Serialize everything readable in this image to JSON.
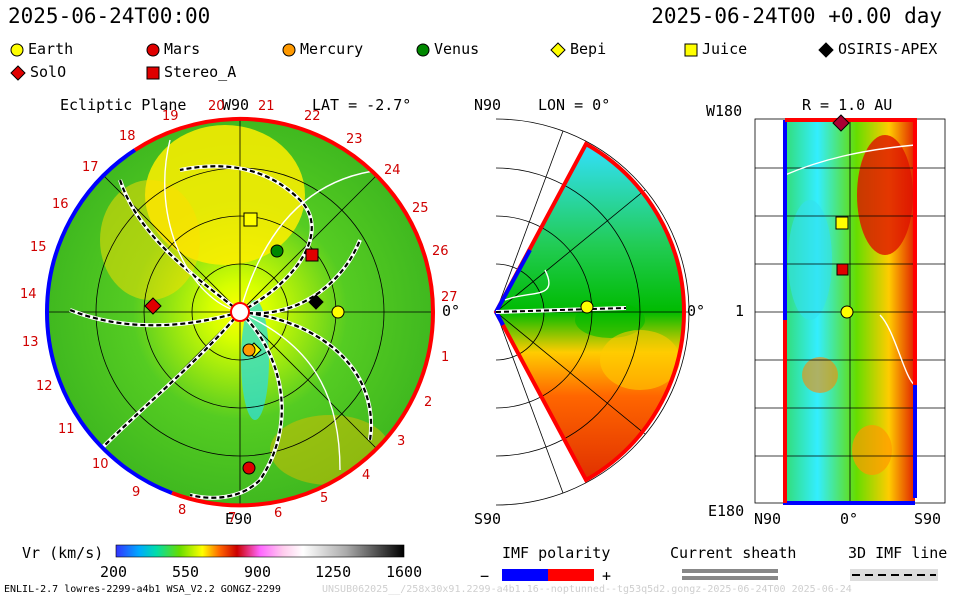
{
  "header": {
    "left_time": "2025-06-24T00:00",
    "right_time": "2025-06-24T00 +0.00 day"
  },
  "legend": [
    {
      "name": "Earth",
      "shape": "circle",
      "color": "#ffff00"
    },
    {
      "name": "Mars",
      "shape": "circle",
      "color": "#e00000"
    },
    {
      "name": "Mercury",
      "shape": "circle",
      "color": "#ff9900"
    },
    {
      "name": "Venus",
      "shape": "circle",
      "color": "#008800"
    },
    {
      "name": "Bepi",
      "shape": "diamond",
      "color": "#ffff00"
    },
    {
      "name": "Juice",
      "shape": "square",
      "color": "#ffff00"
    },
    {
      "name": "OSIRIS-APEX",
      "shape": "diamond",
      "color": "#000000"
    },
    {
      "name": "SolO",
      "shape": "diamond",
      "color": "#e00000"
    },
    {
      "name": "Stereo_A",
      "shape": "square",
      "color": "#e00000"
    }
  ],
  "ecliptic": {
    "title": "Ecliptic Plane",
    "lat": "LAT = -2.7°",
    "top": "W90",
    "bottom": "E90",
    "right": "0°",
    "ticks": [
      "19",
      "20",
      "21",
      "22",
      "23",
      "24",
      "25",
      "26",
      "27",
      "1",
      "2",
      "3",
      "4",
      "5",
      "6",
      "7",
      "8",
      "9",
      "10",
      "11",
      "12",
      "13",
      "14",
      "15",
      "16",
      "17",
      "18"
    ]
  },
  "meridional": {
    "lon": "LON = 0°",
    "top": "N90",
    "bottom": "S90",
    "right": "0°"
  },
  "rpanel": {
    "title": "R = 1.0 AU",
    "top": "W180",
    "mid": "1",
    "bottom": "E180",
    "x_left": "N90",
    "x_mid": "0°",
    "x_right": "S90"
  },
  "colorbar": {
    "label": "Vr (km/s)",
    "ticks": [
      "200",
      "550",
      "900",
      "1250",
      "1600"
    ],
    "range": [
      200,
      1600
    ]
  },
  "imf": {
    "label": "IMF polarity",
    "minus": "−",
    "plus": "+"
  },
  "sheath": {
    "label": "Current sheath"
  },
  "imf3d": {
    "label": "3D IMF line"
  },
  "footer": {
    "left": "ENLIL-2.7 lowres-2299-a4b1 WSA_V2.2 GONGZ-2299",
    "right": "UNSUB062025__/258x30x91.2299-a4b1.16--noptunned--tg53q5d2.gongz-2025-06-24T00   2025-06-24"
  },
  "colors": {
    "earth": "#ffff00",
    "blue": "#0000ff",
    "red": "#ff0000"
  }
}
